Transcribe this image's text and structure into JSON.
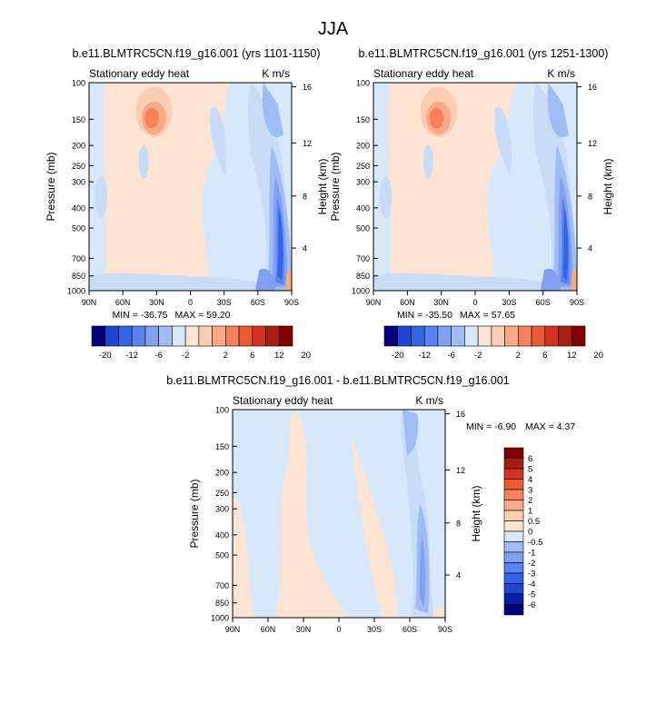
{
  "title": "JJA",
  "chart_data": [
    {
      "type": "heatmap",
      "title": "b.e11.BLMTRC5CN.f19_g16.001 (yrs 1101-1150)",
      "left_label": "Stationary eddy heat",
      "right_label": "K m/s",
      "ylabel": "Pressure (mb)",
      "ylabel_right": "Height (km)",
      "x_ticks": [
        "90N",
        "60N",
        "30N",
        "0",
        "30S",
        "60S",
        "90S"
      ],
      "y_ticks": [
        "100",
        "150",
        "200",
        "250",
        "300",
        "400",
        "500",
        "700",
        "850",
        "1000"
      ],
      "y_ticks_right": [
        "16",
        "12",
        "8",
        "4"
      ],
      "min_label": "MIN = -36.75",
      "max_label": "MAX =  59.20",
      "colorbar_labels": [
        "-20",
        "-12",
        "-6",
        "-2",
        "2",
        "6",
        "12",
        "20"
      ]
    },
    {
      "type": "heatmap",
      "title": "b.e11.BLMTRC5CN.f19_g16.001 (yrs 1251-1300)",
      "left_label": "Stationary eddy heat",
      "right_label": "K m/s",
      "ylabel": "Pressure (mb)",
      "ylabel_right": "Height (km)",
      "x_ticks": [
        "90N",
        "60N",
        "30N",
        "0",
        "30S",
        "60S",
        "90S"
      ],
      "y_ticks": [
        "100",
        "150",
        "200",
        "250",
        "300",
        "400",
        "500",
        "700",
        "850",
        "1000"
      ],
      "y_ticks_right": [
        "16",
        "12",
        "8",
        "4"
      ],
      "min_label": "MIN = -35.50",
      "max_label": "MAX =  57.65",
      "colorbar_labels": [
        "-20",
        "-12",
        "-6",
        "-2",
        "2",
        "6",
        "12",
        "20"
      ]
    },
    {
      "type": "heatmap",
      "title": "b.e11.BLMTRC5CN.f19_g16.001 - b.e11.BLMTRC5CN.f19_g16.001",
      "left_label": "Stationary eddy heat",
      "right_label": "K m/s",
      "ylabel": "Pressure (mb)",
      "ylabel_right": "Height (km)",
      "x_ticks": [
        "90N",
        "60N",
        "30N",
        "0",
        "30S",
        "60S",
        "90S"
      ],
      "y_ticks": [
        "100",
        "150",
        "200",
        "250",
        "300",
        "400",
        "500",
        "700",
        "850",
        "1000"
      ],
      "y_ticks_right": [
        "16",
        "12",
        "8",
        "4"
      ],
      "min_label": "MIN =  -6.90",
      "max_label": "MAX =   4.37",
      "colorbar_labels": [
        "6",
        "5",
        "4",
        "3",
        "2",
        "1",
        "0.5",
        "0",
        "-0.5",
        "-1",
        "-2",
        "-3",
        "-4",
        "-5",
        "-6"
      ]
    }
  ],
  "colors": {
    "palette": [
      "#00007f",
      "#0a1ea8",
      "#1e46d2",
      "#3264e6",
      "#5a82f0",
      "#82a0f0",
      "#a0bcf5",
      "#c8dcf8",
      "#d7e8fa",
      "#fde4d2",
      "#fbcdb2",
      "#f8aa87",
      "#f5825a",
      "#eb5a32",
      "#d2321e",
      "#aa1e0f",
      "#800000"
    ],
    "seq_colorbar": [
      "#00007f",
      "#1e46d2",
      "#3264e6",
      "#5a82f0",
      "#82a0f0",
      "#a0bcf5",
      "#d7e8fa",
      "#fde4d2",
      "#fbcdb2",
      "#f8aa87",
      "#f5825a",
      "#eb5a32",
      "#d2321e",
      "#aa1e0f",
      "#800000"
    ],
    "diff_colorbar": [
      "#800000",
      "#aa1e0f",
      "#d2321e",
      "#eb5a32",
      "#f5825a",
      "#f8aa87",
      "#fbcdb2",
      "#fde4d2",
      "#d7e8fa",
      "#a0bcf5",
      "#82a0f0",
      "#5a82f0",
      "#3264e6",
      "#1e46d2",
      "#0a1ea8",
      "#00007f"
    ]
  }
}
